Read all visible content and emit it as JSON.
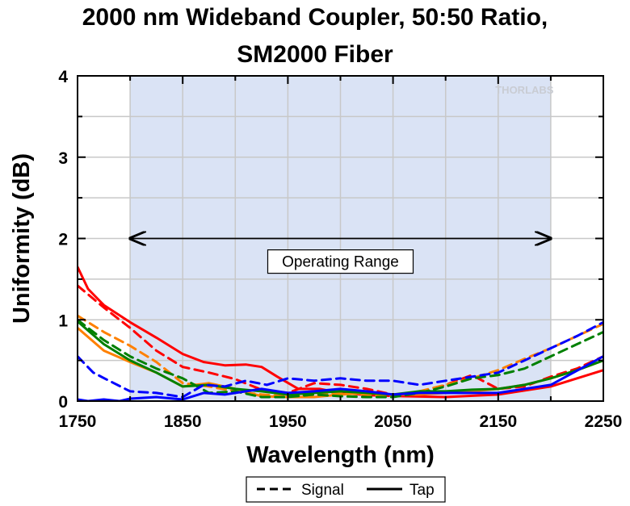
{
  "chart_data": {
    "type": "line",
    "title_line1": "2000 nm Wideband Coupler, 50:50 Ratio,",
    "title_line2": "SM2000 Fiber",
    "xlabel": "Wavelength (nm)",
    "ylabel": "Uniformity (dB)",
    "xlim": [
      1750,
      2250
    ],
    "ylim": [
      0,
      4
    ],
    "xticks": [
      "1750",
      "1850",
      "1950",
      "2050",
      "2150",
      "2250"
    ],
    "yticks": [
      "0",
      "1",
      "2",
      "3",
      "4"
    ],
    "grid": true,
    "operating_range": {
      "x": [
        1800,
        2200
      ],
      "y": 2.0,
      "label": "Operating Range"
    },
    "watermark": "THORLABS",
    "legend": {
      "position": "bottom",
      "entries": [
        "Signal",
        "Tap"
      ]
    },
    "series": [
      {
        "color": "#ff0000",
        "style": "solid",
        "x": [
          1750,
          1760,
          1775,
          1800,
          1825,
          1850,
          1870,
          1890,
          1910,
          1925,
          1940,
          1960,
          1980,
          2000,
          2030,
          2060,
          2100,
          2150,
          2200,
          2250
        ],
        "y": [
          1.65,
          1.38,
          1.18,
          0.97,
          0.78,
          0.58,
          0.48,
          0.44,
          0.45,
          0.42,
          0.3,
          0.15,
          0.15,
          0.1,
          0.07,
          0.06,
          0.05,
          0.08,
          0.18,
          0.38
        ]
      },
      {
        "color": "#ff0000",
        "style": "dashed",
        "x": [
          1750,
          1775,
          1800,
          1825,
          1850,
          1875,
          1900,
          1925,
          1950,
          1975,
          2000,
          2025,
          2050,
          2075,
          2100,
          2125,
          2150,
          2175,
          2200,
          2225,
          2250
        ],
        "y": [
          1.42,
          1.15,
          0.9,
          0.62,
          0.42,
          0.35,
          0.27,
          0.14,
          0.1,
          0.22,
          0.2,
          0.15,
          0.08,
          0.08,
          0.2,
          0.32,
          0.15,
          0.18,
          0.3,
          0.4,
          0.55
        ]
      },
      {
        "color": "#ff8000",
        "style": "solid",
        "x": [
          1750,
          1775,
          1800,
          1825,
          1850,
          1875,
          1900,
          1925,
          1950,
          1975,
          2000,
          2025,
          2050,
          2075,
          2100,
          2125,
          2150,
          2175,
          2200,
          2225,
          2250
        ],
        "y": [
          0.9,
          0.62,
          0.48,
          0.35,
          0.18,
          0.22,
          0.15,
          0.06,
          0.05,
          0.05,
          0.08,
          0.1,
          0.08,
          0.08,
          0.1,
          0.12,
          0.15,
          0.2,
          0.28,
          0.38,
          0.5
        ]
      },
      {
        "color": "#ff8000",
        "style": "dashed",
        "x": [
          1750,
          1775,
          1800,
          1825,
          1850,
          1875,
          1900,
          1925,
          1950,
          1975,
          2000,
          2025,
          2050,
          2075,
          2100,
          2125,
          2150,
          2175,
          2200,
          2225,
          2250
        ],
        "y": [
          1.05,
          0.85,
          0.68,
          0.48,
          0.22,
          0.18,
          0.12,
          0.08,
          0.06,
          0.08,
          0.1,
          0.08,
          0.06,
          0.12,
          0.2,
          0.28,
          0.38,
          0.52,
          0.65,
          0.8,
          0.95
        ]
      },
      {
        "color": "#008000",
        "style": "solid",
        "x": [
          1750,
          1775,
          1800,
          1825,
          1850,
          1875,
          1900,
          1925,
          1950,
          1975,
          2000,
          2025,
          2050,
          2075,
          2100,
          2125,
          2150,
          2175,
          2200,
          2225,
          2250
        ],
        "y": [
          0.98,
          0.7,
          0.5,
          0.35,
          0.18,
          0.2,
          0.15,
          0.12,
          0.08,
          0.1,
          0.12,
          0.1,
          0.08,
          0.12,
          0.12,
          0.14,
          0.15,
          0.2,
          0.28,
          0.38,
          0.5
        ]
      },
      {
        "color": "#008000",
        "style": "dashed",
        "x": [
          1750,
          1775,
          1800,
          1825,
          1850,
          1875,
          1900,
          1925,
          1950,
          1975,
          2000,
          2025,
          2050,
          2075,
          2100,
          2125,
          2150,
          2175,
          2200,
          2225,
          2250
        ],
        "y": [
          1.0,
          0.75,
          0.55,
          0.4,
          0.28,
          0.1,
          0.12,
          0.05,
          0.05,
          0.08,
          0.06,
          0.05,
          0.05,
          0.1,
          0.18,
          0.28,
          0.32,
          0.4,
          0.55,
          0.7,
          0.85
        ]
      },
      {
        "color": "#0000ff",
        "style": "solid",
        "x": [
          1750,
          1760,
          1775,
          1790,
          1800,
          1825,
          1850,
          1870,
          1890,
          1910,
          1925,
          1950,
          1975,
          2000,
          2025,
          2050,
          2075,
          2100,
          2150,
          2200,
          2250
        ],
        "y": [
          0.02,
          0.0,
          0.02,
          0.0,
          0.03,
          0.05,
          0.02,
          0.1,
          0.08,
          0.12,
          0.15,
          0.1,
          0.12,
          0.15,
          0.12,
          0.08,
          0.1,
          0.1,
          0.1,
          0.2,
          0.55
        ]
      },
      {
        "color": "#0000ff",
        "style": "dashed",
        "x": [
          1750,
          1765,
          1780,
          1800,
          1825,
          1850,
          1870,
          1890,
          1910,
          1930,
          1950,
          1975,
          2000,
          2025,
          2050,
          2075,
          2100,
          2125,
          2150,
          2175,
          2200,
          2225,
          2250
        ],
        "y": [
          0.55,
          0.35,
          0.25,
          0.12,
          0.1,
          0.05,
          0.2,
          0.18,
          0.25,
          0.2,
          0.28,
          0.25,
          0.28,
          0.25,
          0.25,
          0.2,
          0.25,
          0.3,
          0.35,
          0.5,
          0.65,
          0.8,
          0.97
        ]
      }
    ]
  }
}
